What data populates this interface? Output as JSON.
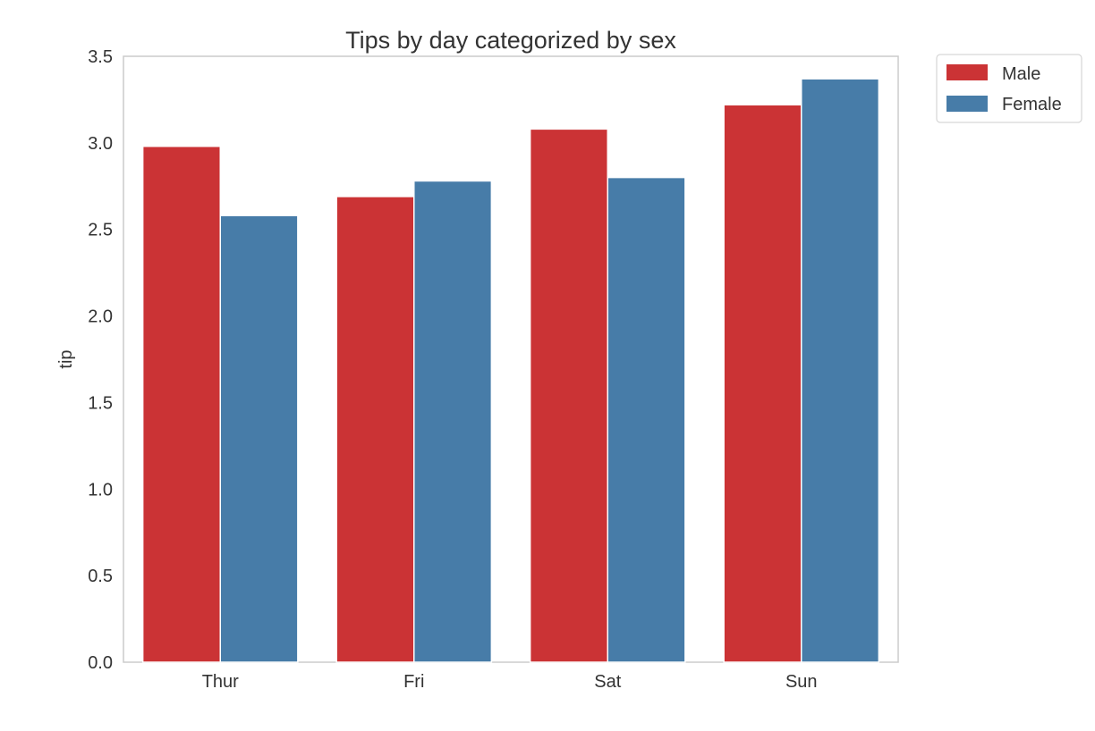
{
  "chart_data": {
    "type": "bar",
    "title": "Tips by day categorized by sex",
    "xlabel": "",
    "ylabel": "tip",
    "categories": [
      "Thur",
      "Fri",
      "Sat",
      "Sun"
    ],
    "series": [
      {
        "name": "Male",
        "color": "#CB3335",
        "values": [
          2.98,
          2.69,
          3.08,
          3.22
        ]
      },
      {
        "name": "Female",
        "color": "#477CA8",
        "values": [
          2.58,
          2.78,
          2.8,
          3.37
        ]
      }
    ],
    "ylim": [
      0,
      3.5
    ],
    "yticks": [
      "0.0",
      "0.5",
      "1.0",
      "1.5",
      "2.0",
      "2.5",
      "3.0",
      "3.5"
    ],
    "grid": false,
    "legend_position": "outside-top-right"
  }
}
